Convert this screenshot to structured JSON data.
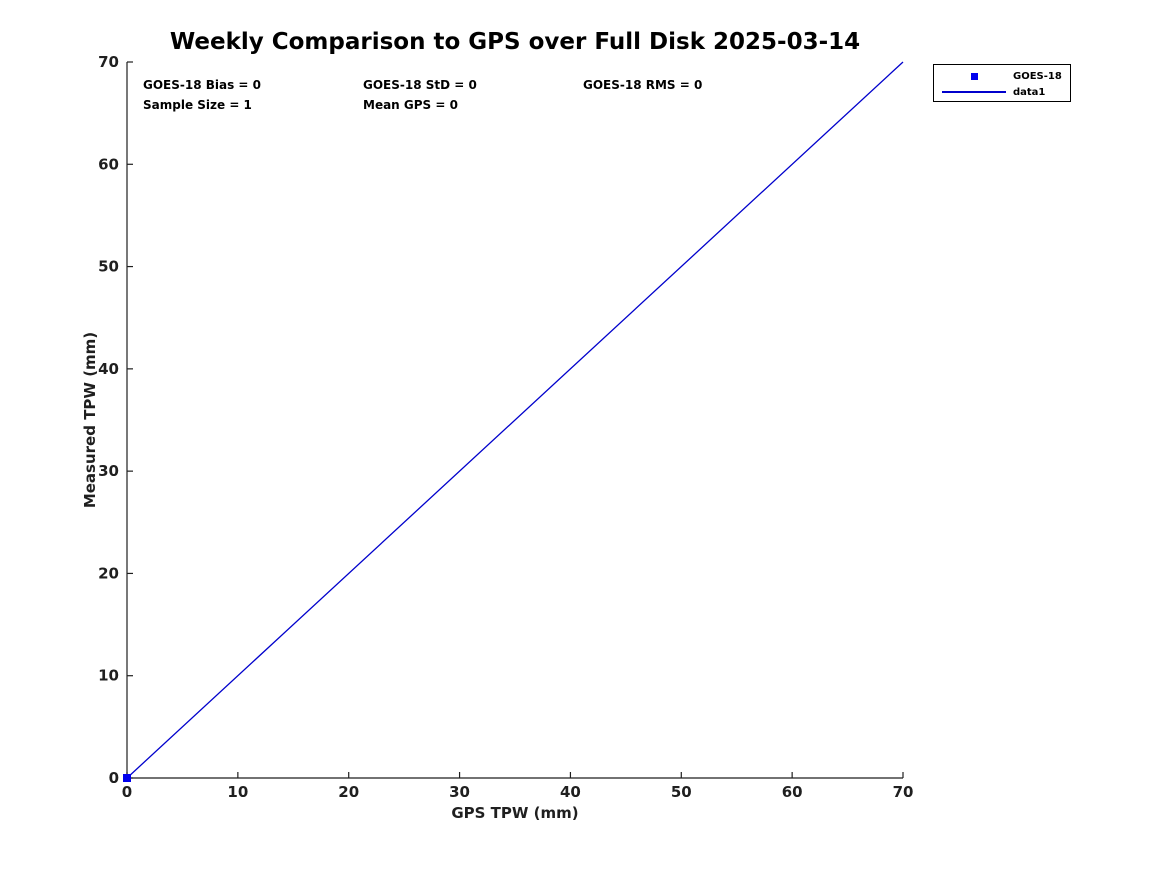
{
  "chart_data": {
    "type": "scatter",
    "title": "Weekly Comparison to GPS over Full Disk 2025-03-14",
    "xlabel": "GPS TPW (mm)",
    "ylabel": "Measured TPW (mm)",
    "xlim": [
      0,
      70
    ],
    "ylim": [
      0,
      70
    ],
    "xticks": [
      0,
      10,
      20,
      30,
      40,
      50,
      60,
      70
    ],
    "yticks": [
      0,
      10,
      20,
      30,
      40,
      50,
      60,
      70
    ],
    "grid": false,
    "box": false,
    "legend_position": "outside-top-right",
    "series": [
      {
        "name": "GOES-18",
        "type": "scatter",
        "marker": "filled-square",
        "color": "#0000EE",
        "points": [
          {
            "x": 0,
            "y": 0
          }
        ]
      },
      {
        "name": "data1",
        "type": "line",
        "color": "#0000CC",
        "points": [
          {
            "x": 0,
            "y": 0
          },
          {
            "x": 70,
            "y": 70
          }
        ]
      }
    ],
    "annotations": [
      {
        "text": "GOES-18 Bias = 0",
        "row": 1,
        "col": 1
      },
      {
        "text": "GOES-18 StD = 0",
        "row": 1,
        "col": 2
      },
      {
        "text": "GOES-18 RMS = 0",
        "row": 1,
        "col": 3
      },
      {
        "text": "Sample Size = 1",
        "row": 2,
        "col": 1
      },
      {
        "text": "Mean GPS = 0",
        "row": 2,
        "col": 2
      }
    ]
  },
  "colors": {
    "marker_blue": "#0000EE",
    "line_blue": "#0000CC",
    "axis": "#1f1f1f",
    "text": "#000000",
    "background": "#FFFFFF"
  }
}
